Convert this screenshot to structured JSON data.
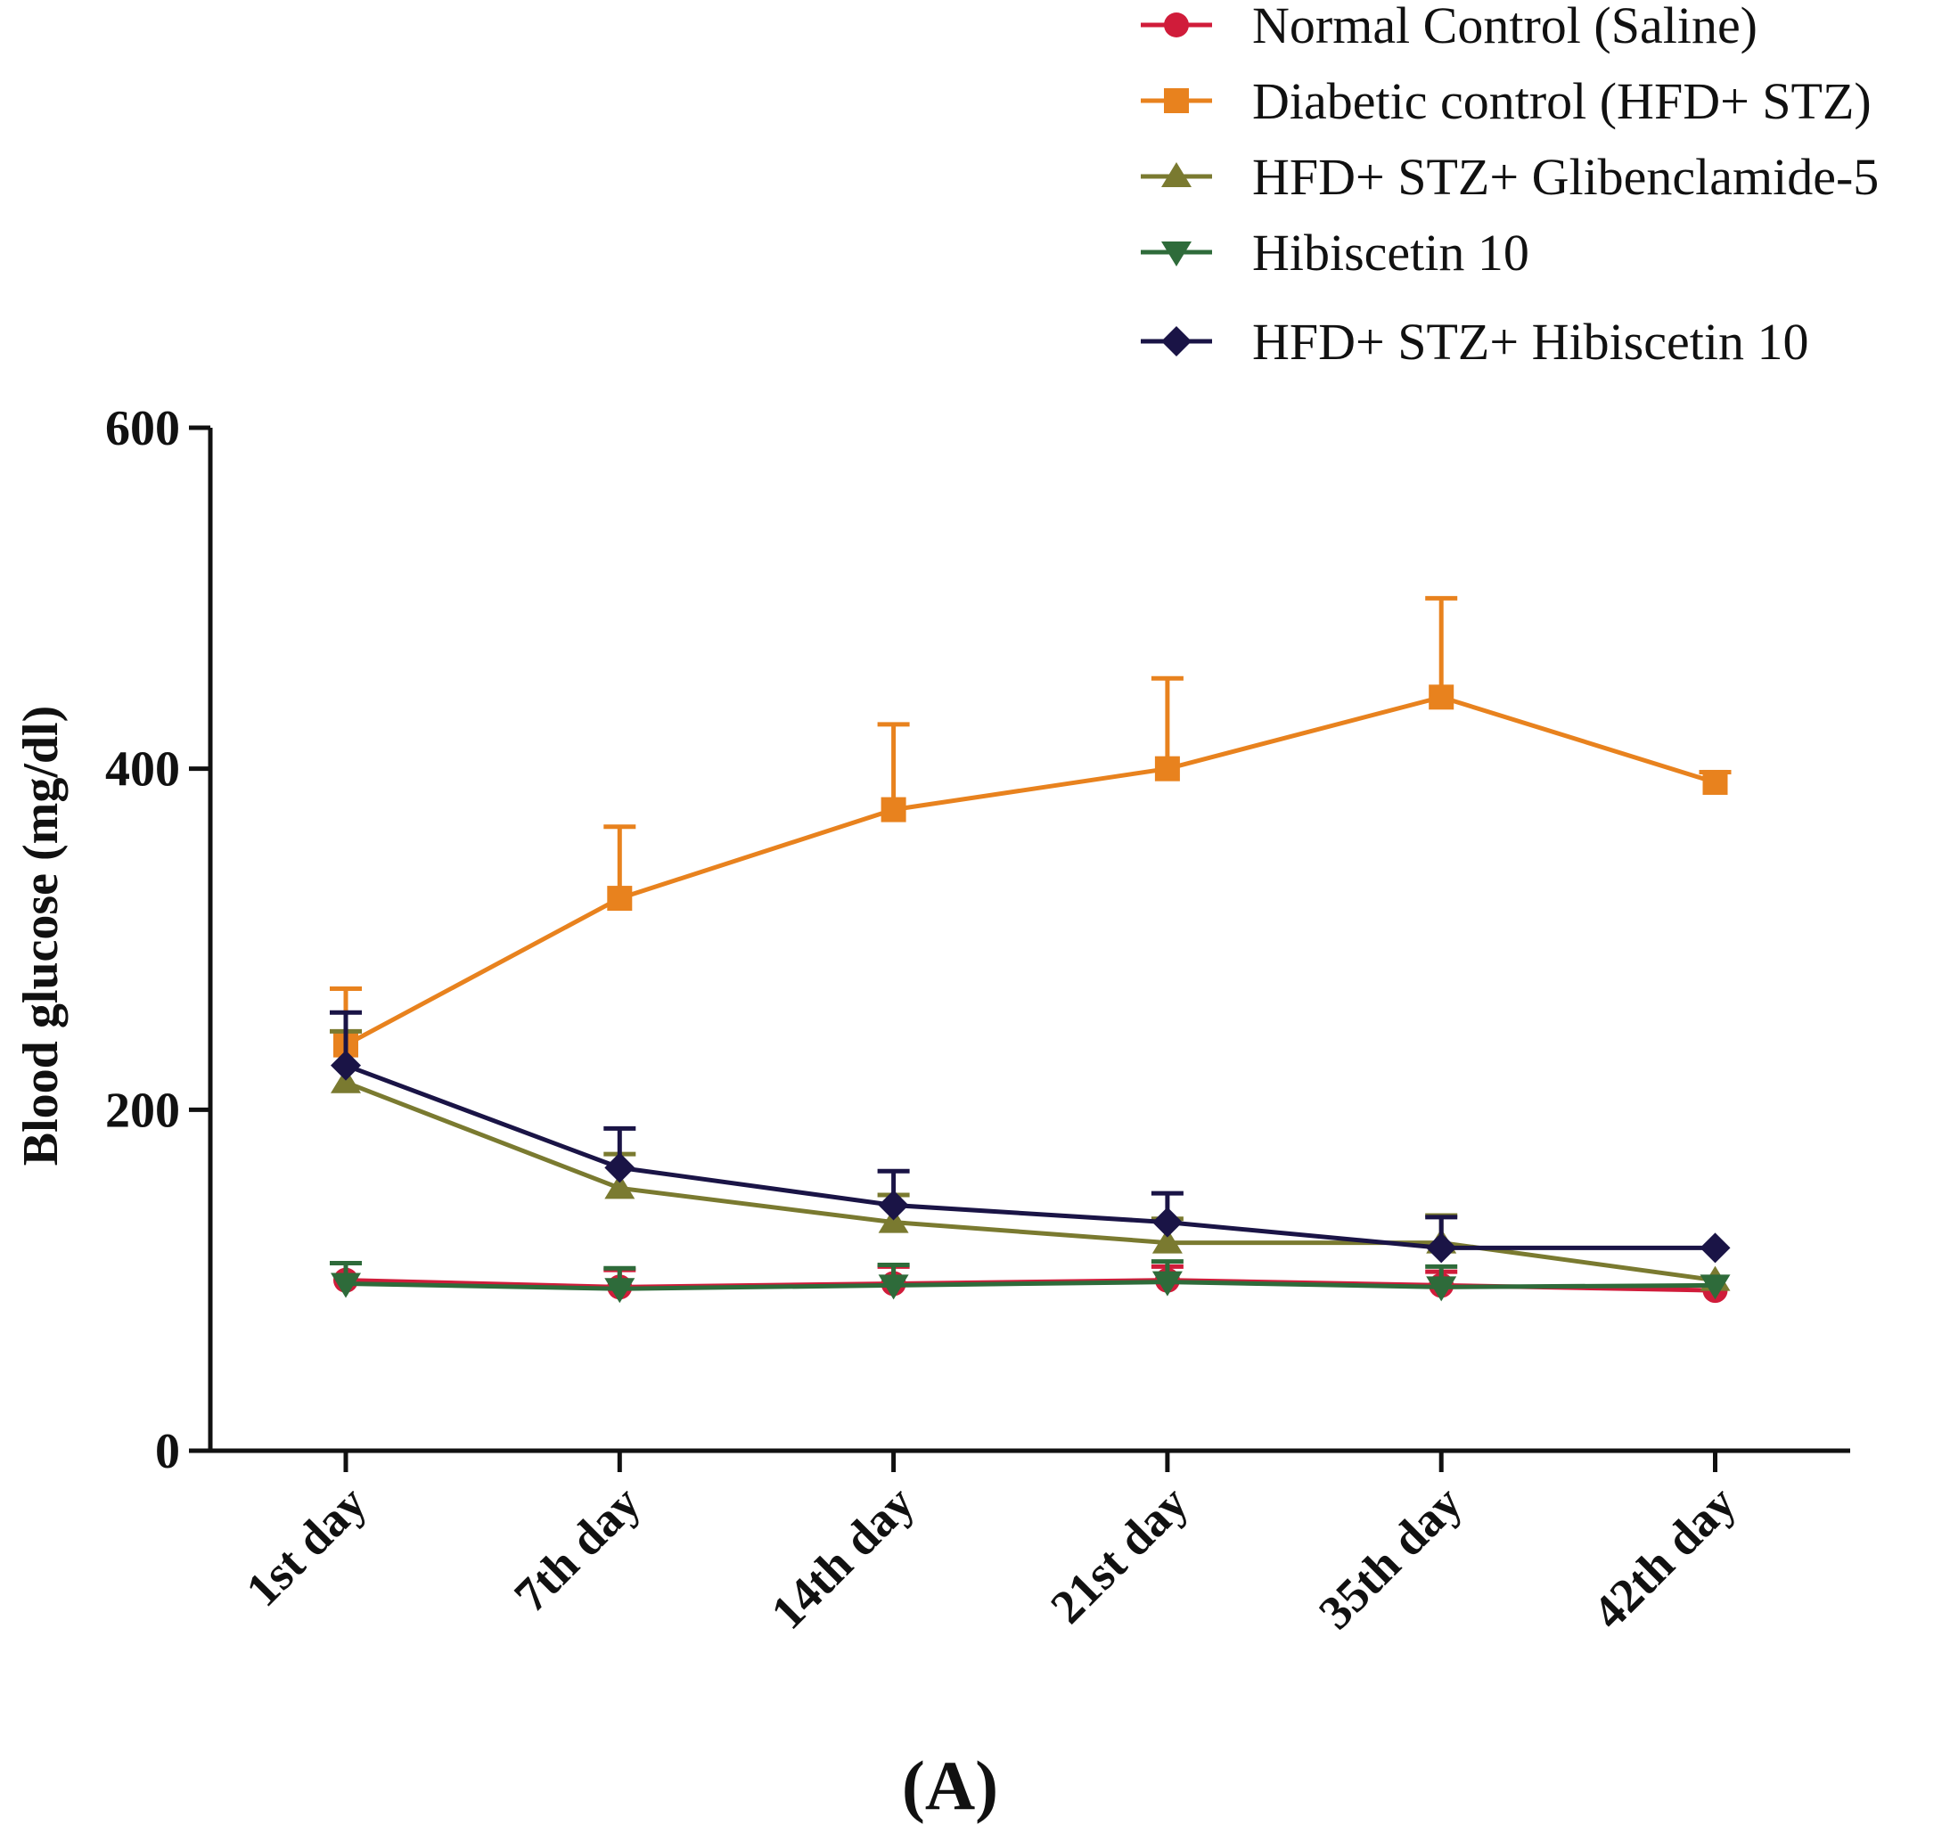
{
  "chart_data": {
    "type": "line",
    "title": "",
    "xlabel": "",
    "ylabel": "Blood glucose (mg/dl)",
    "ylim": [
      0,
      600
    ],
    "yticks": [
      0,
      200,
      400,
      600
    ],
    "categories": [
      "1st day",
      "7th day",
      "14th day",
      "21st day",
      "35th day",
      "42th day"
    ],
    "legend_position": "top-right",
    "panel_label": "(A)",
    "series": [
      {
        "name": "Normal Control (Saline)",
        "color": "#d01c3a",
        "marker": "circle",
        "values": [
          100,
          96,
          98,
          100,
          97,
          94
        ],
        "errors": [
          10,
          10,
          10,
          8,
          8,
          0
        ]
      },
      {
        "name": "Diabetic control (HFD+ STZ)",
        "color": "#e8821e",
        "marker": "square",
        "values": [
          238,
          324,
          376,
          400,
          442,
          392
        ],
        "errors": [
          33,
          42,
          50,
          53,
          58,
          6
        ]
      },
      {
        "name": "HFD+ STZ+ Glibenclamide-5",
        "color": "#7a7a30",
        "marker": "triangle-up",
        "values": [
          216,
          154,
          134,
          122,
          122,
          100
        ],
        "errors": [
          30,
          20,
          16,
          14,
          16,
          0
        ]
      },
      {
        "name": "Hibiscetin 10",
        "color": "#2e6b3a",
        "marker": "triangle-down",
        "values": [
          98,
          95,
          97,
          99,
          96,
          97
        ],
        "errors": [
          12,
          12,
          12,
          12,
          12,
          0
        ]
      },
      {
        "name": "HFD+ STZ+ Hibiscetin 10",
        "color": "#1a1446",
        "marker": "diamond",
        "values": [
          226,
          166,
          144,
          134,
          119,
          119
        ],
        "errors": [
          31,
          23,
          20,
          17,
          18,
          0
        ]
      }
    ]
  }
}
